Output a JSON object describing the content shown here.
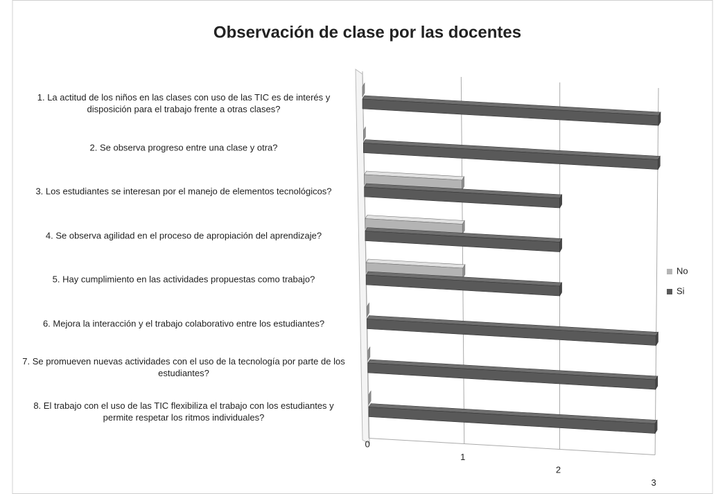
{
  "chart_data": {
    "type": "bar3d",
    "orientation": "horizontal",
    "title": "Observación de clase por las docentes",
    "categories": [
      "1. La actitud de los niños en las clases con uso de las TIC es de interés y disposición para el trabajo frente a otras clases?",
      "2. Se observa progreso entre una clase y otra?",
      "3. Los estudiantes se interesan por el manejo de elementos tecnológicos?",
      "4. Se observa agilidad en el proceso de apropiación del aprendizaje?",
      "5. Hay cumplimiento en las actividades propuestas como trabajo?",
      "6. Mejora la interacción y el trabajo colaborativo entre los estudiantes?",
      "7. Se promueven nuevas actividades con el uso de la tecnología por parte de los estudiantes?",
      "8. El trabajo con el uso de las TIC flexibiliza el trabajo con los estudiantes y permite respetar los ritmos individuales?"
    ],
    "series": [
      {
        "name": "No",
        "color": "#b4b4b4",
        "values": [
          0,
          0,
          1,
          1,
          1,
          0,
          0,
          0
        ]
      },
      {
        "name": "Si",
        "color": "#595959",
        "values": [
          3,
          3,
          2,
          2,
          2,
          3,
          3,
          3
        ]
      }
    ],
    "xlim": [
      0,
      3
    ],
    "xticks": [
      0,
      1,
      2,
      3
    ],
    "grid": true,
    "legend": "right"
  }
}
